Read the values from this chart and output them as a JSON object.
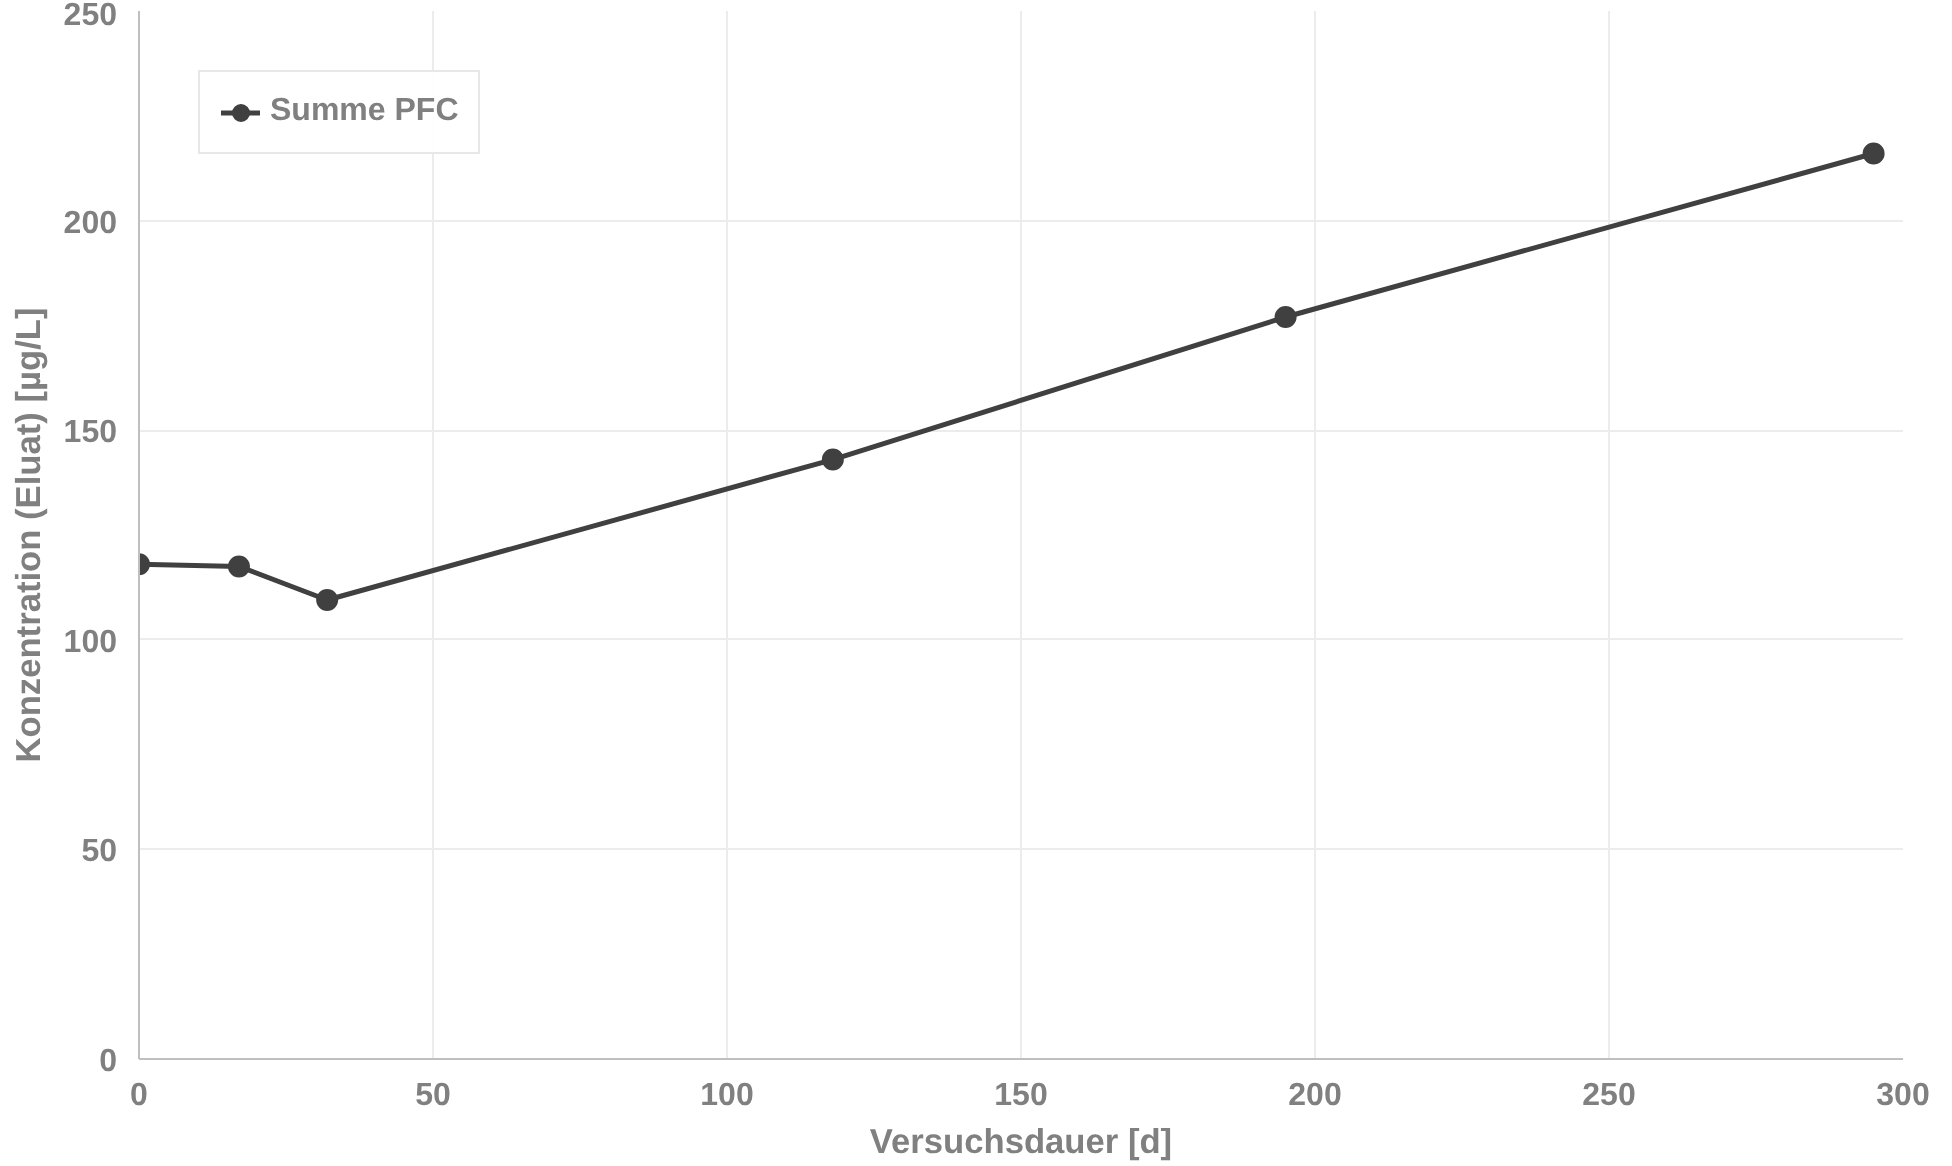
{
  "chart_data": {
    "type": "line",
    "xlabel": "Versuchsdauer [d]",
    "ylabel": "Konzentration (Eluat) [µg/L]",
    "x": [
      0,
      17,
      32,
      118,
      195,
      295
    ],
    "series": [
      {
        "name": "Summe PFC",
        "color": "#404040",
        "values": [
          118,
          117.5,
          109.5,
          143,
          177,
          216
        ]
      }
    ],
    "xlim": [
      0,
      300
    ],
    "xticks": [
      0,
      50,
      100,
      150,
      200,
      250,
      300
    ],
    "ylim": [
      0,
      250
    ],
    "yticks": [
      0,
      50,
      100,
      150,
      200,
      250
    ],
    "grid": true,
    "legend": "top left",
    "marker": "circle",
    "line_style": "solid"
  }
}
